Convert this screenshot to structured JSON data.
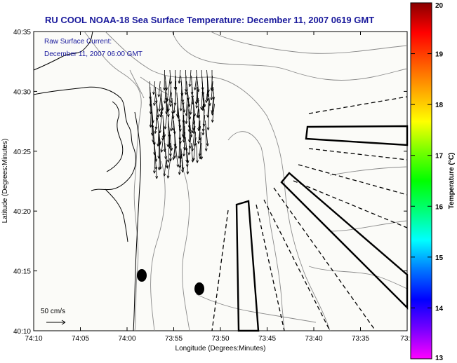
{
  "title": "RU COOL  NOAA-18  Sea Surface Temperature:  December 11, 2007 0619 GMT",
  "annotation": {
    "line1": "Raw Surface Current:",
    "line2": "December 11, 2007 06:00 GMT"
  },
  "scale_label": "50 cm/s",
  "axes": {
    "xlabel": "Longitude (Degrees:Minutes)",
    "ylabel": "Latitude (Degrees:Minutes)",
    "xticks": [
      "74:10",
      "74:05",
      "74:00",
      "73:55",
      "73:50",
      "73:45",
      "73:40",
      "73:35",
      "73:3"
    ],
    "yticks": [
      "40:35",
      "40:30",
      "40:25",
      "40:20",
      "40:15",
      "40:10"
    ]
  },
  "colorbar": {
    "label": "Temperature (°C)",
    "ticks": [
      "20",
      "19",
      "18",
      "17",
      "16",
      "15",
      "14",
      "13"
    ],
    "min": 13,
    "max": 20,
    "colors": [
      "#ff00ff",
      "#7700ff",
      "#0000ff",
      "#0077ff",
      "#00ffff",
      "#00ff77",
      "#00ff00",
      "#77ff00",
      "#ffff00",
      "#ffaa00",
      "#ff5500",
      "#ff0000",
      "#880000"
    ]
  }
}
